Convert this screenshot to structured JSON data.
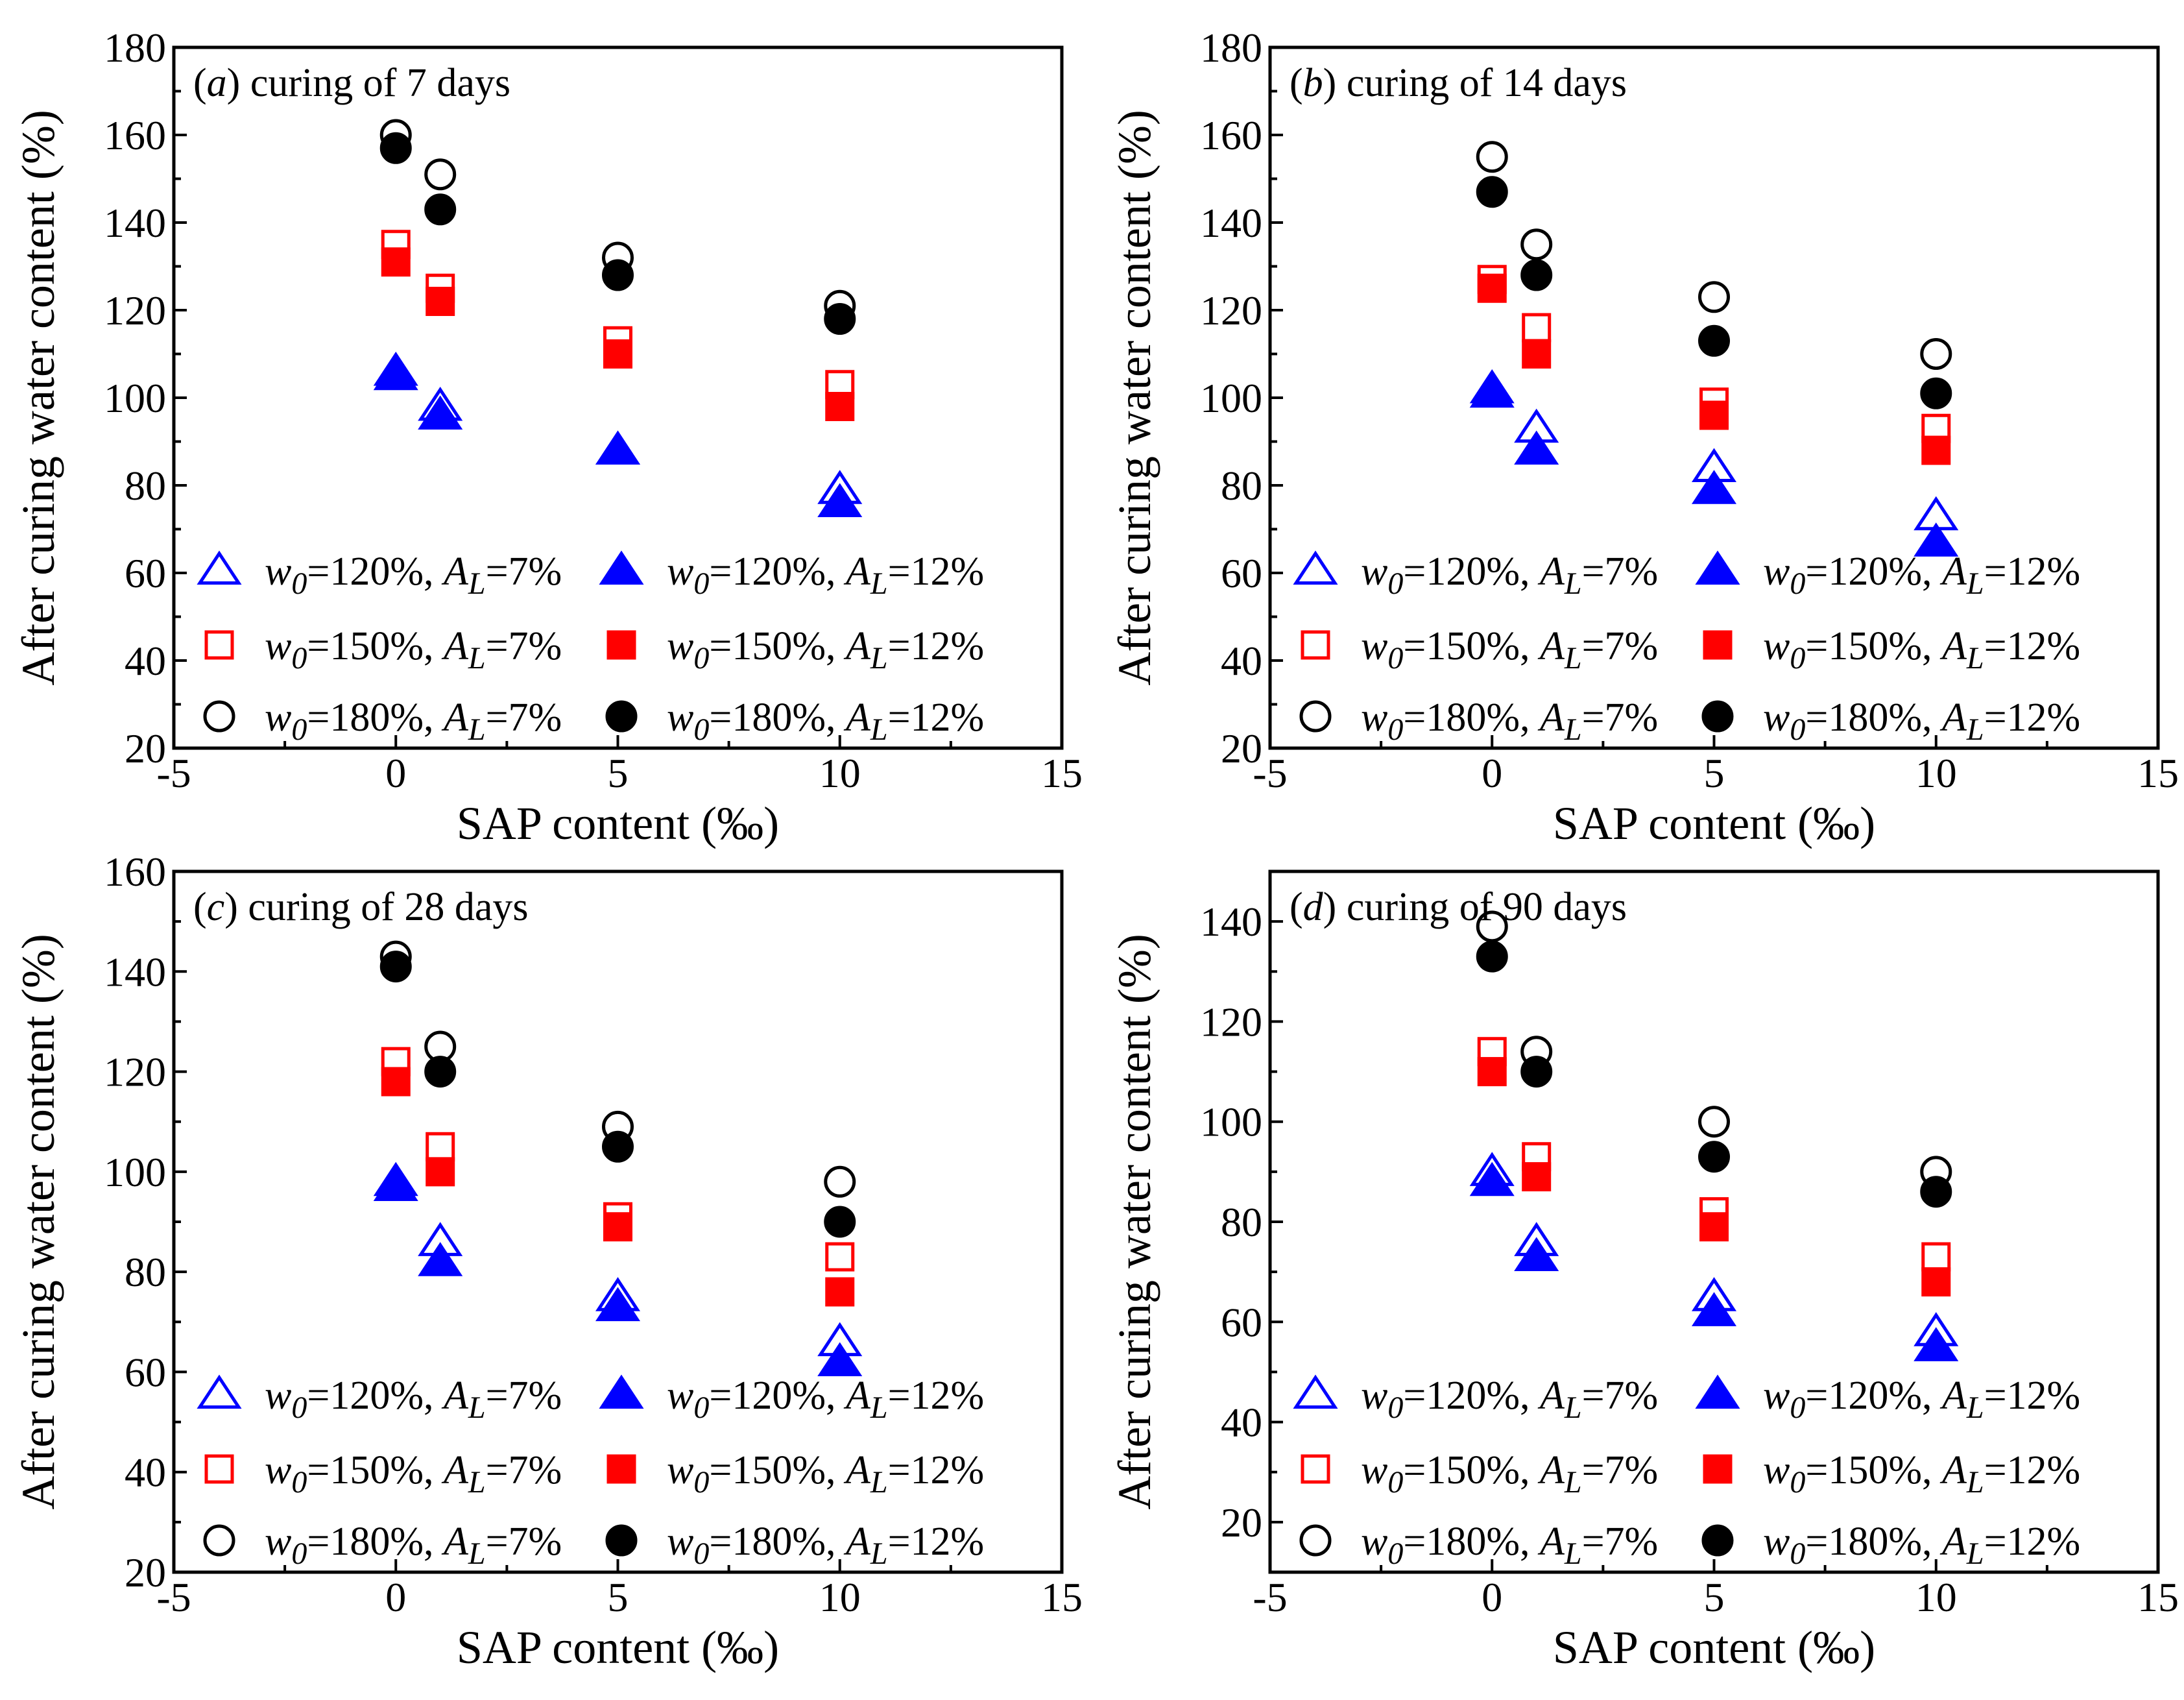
{
  "figure_title": "After curing water content vs SAP content at four curing ages",
  "colors": {
    "blue": "#0000ff",
    "red": "#ff0000",
    "black": "#000000"
  },
  "legend": [
    {
      "w0_symbol": "w",
      "w0_sub": "0",
      "w0_value": "=120%",
      "al_symbol": "A",
      "al_sub": "L",
      "al_value": "=7%",
      "marker": "triangle",
      "filled": false,
      "color": "#0000ff"
    },
    {
      "w0_symbol": "w",
      "w0_sub": "0",
      "w0_value": "=120%",
      "al_symbol": "A",
      "al_sub": "L",
      "al_value": "=12%",
      "marker": "triangle",
      "filled": true,
      "color": "#0000ff"
    },
    {
      "w0_symbol": "w",
      "w0_sub": "0",
      "w0_value": "=150%",
      "al_symbol": "A",
      "al_sub": "L",
      "al_value": "=7%",
      "marker": "square",
      "filled": false,
      "color": "#ff0000"
    },
    {
      "w0_symbol": "w",
      "w0_sub": "0",
      "w0_value": "=150%",
      "al_symbol": "A",
      "al_sub": "L",
      "al_value": "=12%",
      "marker": "square",
      "filled": true,
      "color": "#ff0000"
    },
    {
      "w0_symbol": "w",
      "w0_sub": "0",
      "w0_value": "=180%",
      "al_symbol": "A",
      "al_sub": "L",
      "al_value": "=7%",
      "marker": "circle",
      "filled": false,
      "color": "#000000"
    },
    {
      "w0_symbol": "w",
      "w0_sub": "0",
      "w0_value": "=180%",
      "al_symbol": "A",
      "al_sub": "L",
      "al_value": "=12%",
      "marker": "circle",
      "filled": true,
      "color": "#000000"
    }
  ],
  "chart_data": [
    {
      "type": "scatter",
      "panel_letter": "a",
      "title_text": " curing of 7 days",
      "xlabel": "SAP content (‰)",
      "ylabel": "After curing water content (%)",
      "xlim": [
        -5,
        15
      ],
      "xticks": [
        -5,
        0,
        5,
        10,
        15
      ],
      "ylim": [
        20,
        180
      ],
      "yticks": [
        20,
        40,
        60,
        80,
        100,
        120,
        140,
        160,
        180
      ],
      "x": [
        0,
        1,
        5,
        10
      ],
      "series": [
        {
          "name": "w0=120%, AL=7%",
          "values": [
            106,
            98,
            88,
            79
          ]
        },
        {
          "name": "w0=120%, AL=12%",
          "values": [
            105,
            96,
            88,
            76
          ]
        },
        {
          "name": "w0=150%, AL=7%",
          "values": [
            135,
            125,
            113,
            103
          ]
        },
        {
          "name": "w0=150%, AL=12%",
          "values": [
            131,
            122,
            110,
            98
          ]
        },
        {
          "name": "w0=180%, AL=7%",
          "values": [
            160,
            151,
            132,
            121
          ]
        },
        {
          "name": "w0=180%, AL=12%",
          "values": [
            157,
            143,
            128,
            118
          ]
        }
      ]
    },
    {
      "type": "scatter",
      "panel_letter": "b",
      "title_text": " curing of 14 days",
      "xlabel": "SAP content (‰)",
      "ylabel": "After curing water content (%)",
      "xlim": [
        -5,
        15
      ],
      "xticks": [
        -5,
        0,
        5,
        10,
        15
      ],
      "ylim": [
        20,
        180
      ],
      "yticks": [
        20,
        40,
        60,
        80,
        100,
        120,
        140,
        160,
        180
      ],
      "x": [
        0,
        1,
        5,
        10
      ],
      "series": [
        {
          "name": "w0=120%, AL=7%",
          "values": [
            102,
            93,
            84,
            73
          ]
        },
        {
          "name": "w0=120%, AL=12%",
          "values": [
            101,
            88,
            79,
            67
          ]
        },
        {
          "name": "w0=150%, AL=7%",
          "values": [
            127,
            116,
            99,
            93
          ]
        },
        {
          "name": "w0=150%, AL=12%",
          "values": [
            125,
            110,
            96,
            88
          ]
        },
        {
          "name": "w0=180%, AL=7%",
          "values": [
            155,
            135,
            123,
            110
          ]
        },
        {
          "name": "w0=180%, AL=12%",
          "values": [
            147,
            128,
            113,
            101
          ]
        }
      ]
    },
    {
      "type": "scatter",
      "panel_letter": "c",
      "title_text": " curing of 28 days",
      "xlabel": "SAP content (‰)",
      "ylabel": "After curing water content (%)",
      "xlim": [
        -5,
        15
      ],
      "xticks": [
        -5,
        0,
        5,
        10,
        15
      ],
      "ylim": [
        20,
        160
      ],
      "yticks": [
        20,
        40,
        60,
        80,
        100,
        120,
        140,
        160
      ],
      "x": [
        0,
        1,
        5,
        10
      ],
      "series": [
        {
          "name": "w0=120%, AL=7%",
          "values": [
            98,
            86,
            75,
            66
          ]
        },
        {
          "name": "w0=120%, AL=12%",
          "values": [
            97,
            82,
            73,
            62
          ]
        },
        {
          "name": "w0=150%, AL=7%",
          "values": [
            122,
            105,
            91,
            83
          ]
        },
        {
          "name": "w0=150%, AL=12%",
          "values": [
            118,
            100,
            89,
            76
          ]
        },
        {
          "name": "w0=180%, AL=7%",
          "values": [
            143,
            125,
            109,
            98
          ]
        },
        {
          "name": "w0=180%, AL=12%",
          "values": [
            141,
            120,
            105,
            90
          ]
        }
      ]
    },
    {
      "type": "scatter",
      "panel_letter": "d",
      "title_text": " curing of 90 days",
      "xlabel": "SAP content (‰)",
      "ylabel": "After curing water content (%)",
      "xlim": [
        -5,
        15
      ],
      "xticks": [
        -5,
        0,
        5,
        10,
        15
      ],
      "ylim": [
        10,
        150
      ],
      "yticks": [
        20,
        40,
        60,
        80,
        100,
        120,
        140
      ],
      "x": [
        0,
        1,
        5,
        10
      ],
      "series": [
        {
          "name": "w0=120%, AL=7%",
          "values": [
            90,
            76,
            65,
            58
          ]
        },
        {
          "name": "w0=120%, AL=12%",
          "values": [
            88,
            73,
            62,
            55
          ]
        },
        {
          "name": "w0=150%, AL=7%",
          "values": [
            114,
            93,
            82,
            73
          ]
        },
        {
          "name": "w0=150%, AL=12%",
          "values": [
            110,
            89,
            79,
            68
          ]
        },
        {
          "name": "w0=180%, AL=7%",
          "values": [
            139,
            114,
            100,
            90
          ]
        },
        {
          "name": "w0=180%, AL=12%",
          "values": [
            133,
            110,
            93,
            86
          ]
        }
      ]
    }
  ]
}
